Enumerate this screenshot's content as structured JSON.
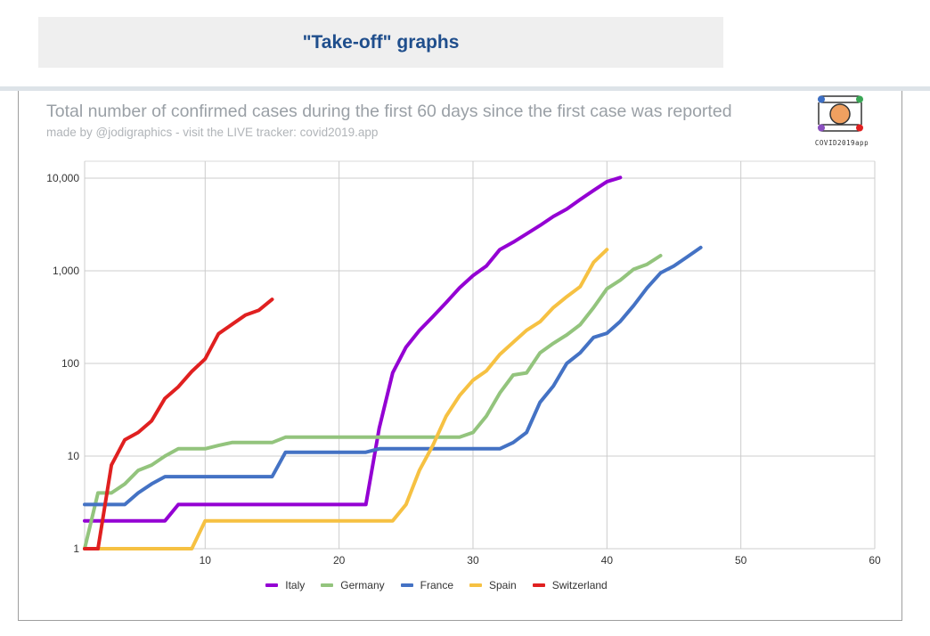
{
  "header": {
    "title": "\"Take-off\" graphs"
  },
  "logo": {
    "text": "COVID2019app"
  },
  "colors": {
    "italy": "#9400d3",
    "germany": "#93c47d",
    "france": "#4472c4",
    "spain": "#f6c142",
    "switzerland": "#e02020"
  },
  "chart_data": {
    "type": "line",
    "title": "Total number of confirmed cases during the first 60 days since the first case was reported",
    "subtitle": "made by @jodigraphics - visit the LIVE tracker: covid2019.app",
    "x_scale": "linear",
    "y_scale": "log",
    "xlim": [
      1,
      60
    ],
    "ylim": [
      1,
      10000
    ],
    "x_ticks": [
      10,
      20,
      30,
      40,
      50,
      60
    ],
    "x_tick_labels": [
      "10",
      "20",
      "30",
      "40",
      "50",
      "60"
    ],
    "y_ticks": [
      1,
      10,
      100,
      1000,
      10000
    ],
    "y_tick_labels": [
      "1",
      "10",
      "100",
      "1,000",
      "10,000"
    ],
    "grid": true,
    "legend_position": "bottom",
    "series": [
      {
        "name": "Italy",
        "color": "#9400d3",
        "x": [
          1,
          2,
          3,
          4,
          5,
          6,
          7,
          8,
          9,
          10,
          11,
          12,
          13,
          14,
          15,
          16,
          17,
          18,
          19,
          20,
          21,
          22,
          23,
          24,
          25,
          26,
          27,
          28,
          29,
          30,
          31,
          32,
          33,
          34,
          35,
          36,
          37,
          38,
          39,
          40,
          41
        ],
        "y": [
          2,
          2,
          2,
          2,
          2,
          2,
          2,
          3,
          3,
          3,
          3,
          3,
          3,
          3,
          3,
          3,
          3,
          3,
          3,
          3,
          3,
          3,
          20,
          79,
          150,
          227,
          320,
          455,
          655,
          888,
          1128,
          1694,
          2036,
          2502,
          3089,
          3858,
          4636,
          5883,
          7375,
          9172,
          10149
        ]
      },
      {
        "name": "Germany",
        "color": "#93c47d",
        "x": [
          1,
          2,
          3,
          4,
          5,
          6,
          7,
          8,
          9,
          10,
          11,
          12,
          13,
          14,
          15,
          16,
          17,
          18,
          19,
          20,
          21,
          22,
          23,
          24,
          25,
          26,
          27,
          28,
          29,
          30,
          31,
          32,
          33,
          34,
          35,
          36,
          37,
          38,
          39,
          40,
          41,
          42,
          43,
          44
        ],
        "y": [
          1,
          4,
          4,
          5,
          7,
          8,
          10,
          12,
          12,
          12,
          13,
          14,
          14,
          14,
          14,
          16,
          16,
          16,
          16,
          16,
          16,
          16,
          16,
          16,
          16,
          16,
          16,
          16,
          16,
          18,
          27,
          48,
          75,
          79,
          130,
          165,
          203,
          262,
          400,
          639,
          795,
          1040,
          1176,
          1457
        ]
      },
      {
        "name": "France",
        "color": "#4472c4",
        "x": [
          1,
          2,
          3,
          4,
          5,
          6,
          7,
          8,
          9,
          10,
          11,
          12,
          13,
          14,
          15,
          16,
          17,
          18,
          19,
          20,
          21,
          22,
          23,
          24,
          25,
          26,
          27,
          28,
          29,
          30,
          31,
          32,
          33,
          34,
          35,
          36,
          37,
          38,
          39,
          40,
          41,
          42,
          43,
          44,
          45,
          46,
          47
        ],
        "y": [
          3,
          3,
          3,
          3,
          4,
          5,
          6,
          6,
          6,
          6,
          6,
          6,
          6,
          6,
          6,
          11,
          11,
          11,
          11,
          11,
          11,
          11,
          12,
          12,
          12,
          12,
          12,
          12,
          12,
          12,
          12,
          12,
          14,
          18,
          38,
          57,
          100,
          130,
          191,
          212,
          285,
          423,
          653,
          949,
          1126,
          1412,
          1784
        ]
      },
      {
        "name": "Spain",
        "color": "#f6c142",
        "x": [
          1,
          2,
          3,
          4,
          5,
          6,
          7,
          8,
          9,
          10,
          11,
          12,
          13,
          14,
          15,
          16,
          17,
          18,
          19,
          20,
          21,
          22,
          23,
          24,
          25,
          26,
          27,
          28,
          29,
          30,
          31,
          32,
          33,
          34,
          35,
          36,
          37,
          38,
          39,
          40
        ],
        "y": [
          1,
          1,
          1,
          1,
          1,
          1,
          1,
          1,
          1,
          2,
          2,
          2,
          2,
          2,
          2,
          2,
          2,
          2,
          2,
          2,
          2,
          2,
          2,
          2,
          3,
          7,
          13,
          27,
          45,
          66,
          83,
          125,
          169,
          228,
          282,
          401,
          525,
          674,
          1231,
          1695
        ]
      },
      {
        "name": "Switzerland",
        "color": "#e02020",
        "x": [
          1,
          2,
          3,
          4,
          5,
          6,
          7,
          8,
          9,
          10,
          11,
          12,
          13,
          14,
          15
        ],
        "y": [
          1,
          1,
          8,
          15,
          18,
          24,
          42,
          56,
          82,
          112,
          209,
          264,
          332,
          374,
          491
        ]
      }
    ]
  }
}
